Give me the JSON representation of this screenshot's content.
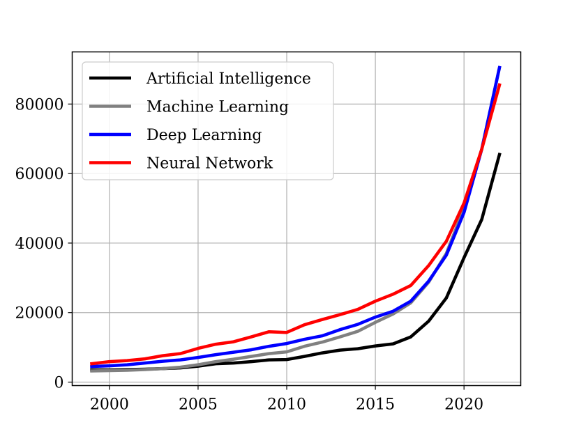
{
  "chart_data": {
    "type": "line",
    "title": "",
    "xlabel": "",
    "ylabel": "",
    "xlim": [
      1997.9,
      2023.2
    ],
    "ylim": [
      -1000,
      95000
    ],
    "xticks": [
      2000,
      2005,
      2010,
      2015,
      2020
    ],
    "xtick_labels": [
      "2000",
      "2005",
      "2010",
      "2015",
      "2020"
    ],
    "yticks": [
      0,
      20000,
      40000,
      60000,
      80000
    ],
    "ytick_labels": [
      "0",
      "20000",
      "40000",
      "60000",
      "80000"
    ],
    "grid": true,
    "legend_position": "upper-left",
    "x": [
      1999,
      2000,
      2001,
      2002,
      2003,
      2004,
      2005,
      2006,
      2007,
      2008,
      2009,
      2010,
      2011,
      2012,
      2013,
      2014,
      2015,
      2016,
      2017,
      2018,
      2019,
      2020,
      2021,
      2022
    ],
    "series": [
      {
        "name": "Artificial Intelligence",
        "color": "#000000",
        "values": [
          3500,
          3500,
          3600,
          3700,
          3900,
          4100,
          4600,
          5300,
          5500,
          5900,
          6400,
          6500,
          7400,
          8400,
          9200,
          9600,
          10400,
          11000,
          13000,
          17500,
          24200,
          35800,
          46800,
          65500
        ]
      },
      {
        "name": "Machine Learning",
        "color": "#808080",
        "values": [
          3200,
          3300,
          3400,
          3600,
          3900,
          4300,
          5000,
          5900,
          6600,
          7400,
          8200,
          8700,
          10300,
          11500,
          13000,
          14600,
          17200,
          19600,
          22800,
          28700,
          37000,
          50000,
          67000,
          90500
        ]
      },
      {
        "name": "Deep Learning",
        "color": "#0000ff",
        "values": [
          4500,
          4700,
          5000,
          5500,
          6000,
          6400,
          7100,
          7900,
          8600,
          9300,
          10300,
          11100,
          12300,
          13300,
          15100,
          16600,
          18700,
          20400,
          23300,
          29000,
          36500,
          48800,
          67000,
          90500
        ]
      },
      {
        "name": "Neural Network",
        "color": "#ff0000",
        "values": [
          5300,
          5900,
          6200,
          6700,
          7600,
          8200,
          9700,
          10900,
          11600,
          13000,
          14500,
          14300,
          16500,
          18000,
          19400,
          20900,
          23300,
          25300,
          27800,
          33500,
          40500,
          51500,
          67000,
          85500
        ]
      }
    ]
  }
}
